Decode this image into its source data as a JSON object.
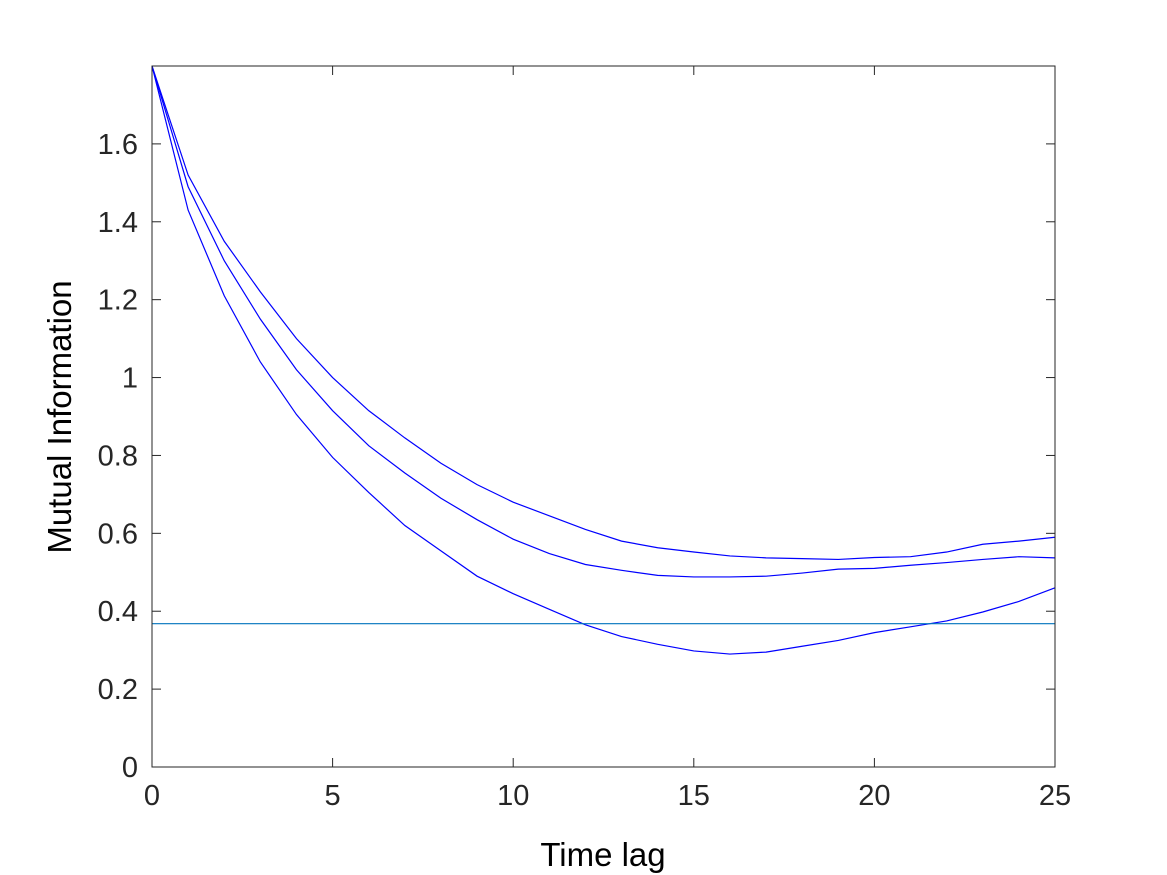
{
  "chart_data": {
    "type": "line",
    "title": "",
    "xlabel": "Time lag",
    "ylabel": "Mutual Information",
    "xlim": [
      0,
      25
    ],
    "ylim": [
      0,
      1.8
    ],
    "xticks": [
      0,
      5,
      10,
      15,
      20,
      25
    ],
    "xtick_labels": [
      "0",
      "5",
      "10",
      "15",
      "20",
      "25"
    ],
    "yticks": [
      0,
      0.2,
      0.4,
      0.6,
      0.8,
      1,
      1.2,
      1.4,
      1.6
    ],
    "ytick_labels": [
      "0",
      "0.2",
      "0.4",
      "0.6",
      "0.8",
      "1",
      "1.2",
      "1.4",
      "1.6"
    ],
    "grid": false,
    "box": true,
    "x": [
      0,
      1,
      2,
      3,
      4,
      5,
      6,
      7,
      8,
      9,
      10,
      11,
      12,
      13,
      14,
      15,
      16,
      17,
      18,
      19,
      20,
      21,
      22,
      23,
      24,
      25
    ],
    "series": [
      {
        "color": "#0000ff",
        "values": [
          1.8,
          1.52,
          1.35,
          1.22,
          1.1,
          1.0,
          0.915,
          0.845,
          0.78,
          0.725,
          0.68,
          0.645,
          0.61,
          0.58,
          0.563,
          0.552,
          0.542,
          0.537,
          0.535,
          0.533,
          0.538,
          0.54,
          0.552,
          0.572,
          0.58,
          0.59
        ]
      },
      {
        "color": "#0000ff",
        "values": [
          1.8,
          1.49,
          1.3,
          1.15,
          1.02,
          0.915,
          0.825,
          0.755,
          0.69,
          0.635,
          0.585,
          0.548,
          0.52,
          0.505,
          0.492,
          0.488,
          0.488,
          0.49,
          0.498,
          0.508,
          0.51,
          0.518,
          0.525,
          0.533,
          0.54,
          0.537
        ]
      },
      {
        "color": "#0000ff",
        "values": [
          1.8,
          1.43,
          1.21,
          1.04,
          0.905,
          0.795,
          0.705,
          0.62,
          0.555,
          0.49,
          0.445,
          0.405,
          0.365,
          0.335,
          0.315,
          0.298,
          0.29,
          0.295,
          0.31,
          0.325,
          0.345,
          0.36,
          0.375,
          0.398,
          0.425,
          0.46
        ]
      }
    ],
    "reference_line": {
      "orientation": "horizontal",
      "y": 0.368,
      "color": "#0072bd"
    }
  }
}
